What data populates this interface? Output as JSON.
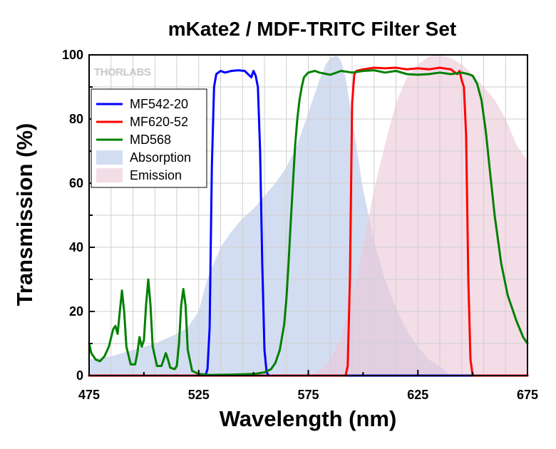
{
  "chart_data": {
    "type": "line",
    "title": "mKate2 / MDF-TRITC Filter Set",
    "xlabel": "Wavelength (nm)",
    "ylabel": "Transmission (%)",
    "xlim": [
      475,
      675
    ],
    "ylim": [
      0,
      100
    ],
    "x_ticks": [
      "475",
      "525",
      "575",
      "625",
      "675"
    ],
    "y_ticks": [
      "0",
      "20",
      "40",
      "60",
      "80",
      "100"
    ],
    "grid": true,
    "legend_position": "top-left",
    "brand": "THORLABS",
    "series": [
      {
        "name": "MF542-20",
        "kind": "line",
        "color": "#0000ff",
        "x": [
          475,
          528,
          529,
          530,
          531,
          532,
          533,
          535,
          537,
          540,
          543,
          546,
          549,
          550,
          551,
          552,
          553,
          554,
          555,
          556,
          557,
          675
        ],
        "y": [
          0,
          0,
          2,
          15,
          65,
          90,
          94,
          95,
          94.5,
          95,
          95.2,
          95,
          93,
          95,
          93.5,
          90,
          70,
          35,
          8,
          1,
          0,
          0
        ]
      },
      {
        "name": "MF620-52",
        "kind": "line",
        "color": "#ff0000",
        "x": [
          475,
          592,
          593,
          594,
          595,
          596,
          597,
          600,
          605,
          610,
          615,
          620,
          625,
          630,
          635,
          640,
          643,
          644,
          645,
          646,
          647,
          648,
          649,
          650,
          675
        ],
        "y": [
          0,
          0,
          3,
          30,
          85,
          94,
          95,
          95.5,
          96,
          95.8,
          96,
          95.5,
          95.8,
          95.5,
          96,
          95.5,
          94,
          95,
          92,
          90,
          75,
          30,
          5,
          0,
          0
        ]
      },
      {
        "name": "MD568",
        "kind": "line",
        "color": "#008000",
        "x": [
          475,
          476,
          478,
          480,
          482,
          484,
          486,
          487,
          488,
          489,
          490,
          491,
          492,
          494,
          496,
          497,
          498,
          499,
          500,
          501,
          502,
          503,
          504,
          506,
          508,
          509,
          510,
          511,
          512,
          514,
          515,
          516,
          517,
          518,
          519,
          520,
          522,
          525,
          530,
          540,
          550,
          555,
          558,
          560,
          562,
          564,
          565,
          566,
          567,
          568,
          569,
          570,
          571,
          572,
          573,
          575,
          578,
          580,
          585,
          590,
          595,
          600,
          605,
          610,
          615,
          620,
          625,
          630,
          635,
          640,
          645,
          648,
          650,
          652,
          654,
          656,
          658,
          660,
          663,
          666,
          670,
          673,
          675
        ],
        "y": [
          10,
          7,
          5,
          4.5,
          6,
          9,
          14.5,
          15.5,
          13,
          20,
          26.5,
          20,
          9,
          3.5,
          3.5,
          7,
          12,
          9,
          11,
          22,
          30,
          22,
          9,
          3,
          3,
          5,
          7,
          5,
          2.5,
          2,
          3,
          10,
          22,
          27,
          22,
          8,
          1.5,
          0.5,
          0.2,
          0.3,
          0.5,
          1,
          2,
          4,
          8,
          16,
          24,
          35,
          48,
          60,
          72,
          80,
          86,
          90,
          93,
          94.5,
          95,
          94.5,
          93.8,
          95,
          94.5,
          95,
          95.2,
          94.5,
          95,
          94,
          93.8,
          94,
          94.5,
          94,
          94.5,
          94,
          93.5,
          91,
          86,
          76,
          63,
          50,
          35,
          25,
          17,
          12,
          10
        ]
      },
      {
        "name": "Absorption",
        "kind": "area",
        "color": "#b8c8e8",
        "x": [
          475,
          485,
          495,
          505,
          515,
          520,
          525,
          528,
          530,
          535,
          540,
          545,
          550,
          555,
          560,
          565,
          570,
          575,
          580,
          583,
          585,
          588,
          590,
          592,
          595,
          600,
          605,
          610,
          615,
          620,
          625,
          630,
          635,
          640
        ],
        "y": [
          5,
          6,
          8,
          10,
          13,
          15,
          20,
          28,
          32,
          40,
          45,
          49,
          52,
          56,
          60,
          65,
          72,
          82,
          92,
          97,
          99,
          100,
          98,
          93,
          80,
          58,
          42,
          30,
          21,
          14,
          9,
          5,
          3,
          0
        ]
      },
      {
        "name": "Emission",
        "kind": "area",
        "color": "#ecc8d8",
        "x": [
          575,
          580,
          585,
          590,
          595,
          600,
          605,
          610,
          615,
          620,
          625,
          630,
          635,
          640,
          645,
          650,
          655,
          660,
          665,
          670,
          675
        ],
        "y": [
          0,
          1.5,
          5,
          12,
          24,
          40,
          58,
          72,
          85,
          93,
          97,
          99.5,
          100,
          99,
          97,
          94,
          90,
          86,
          80,
          72,
          67
        ]
      }
    ]
  }
}
